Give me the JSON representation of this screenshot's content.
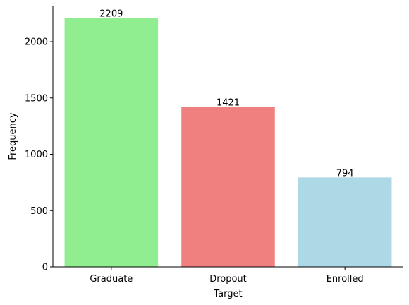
{
  "chart_data": {
    "type": "bar",
    "title": "",
    "xlabel": "Target",
    "ylabel": "Frequency",
    "categories": [
      "Graduate",
      "Dropout",
      "Enrolled"
    ],
    "values": [
      2209,
      1421,
      794
    ],
    "data_labels": [
      "2209",
      "1421",
      "794"
    ],
    "colors": [
      "#90ee90",
      "#f08080",
      "#add8e6"
    ],
    "ylim": [
      0,
      2320
    ],
    "yticks": [
      0,
      500,
      1000,
      1500,
      2000
    ],
    "ytick_labels": [
      "0",
      "500",
      "1000",
      "1500",
      "2000"
    ],
    "grid": false,
    "legend": "none",
    "spines": "left-bottom"
  }
}
